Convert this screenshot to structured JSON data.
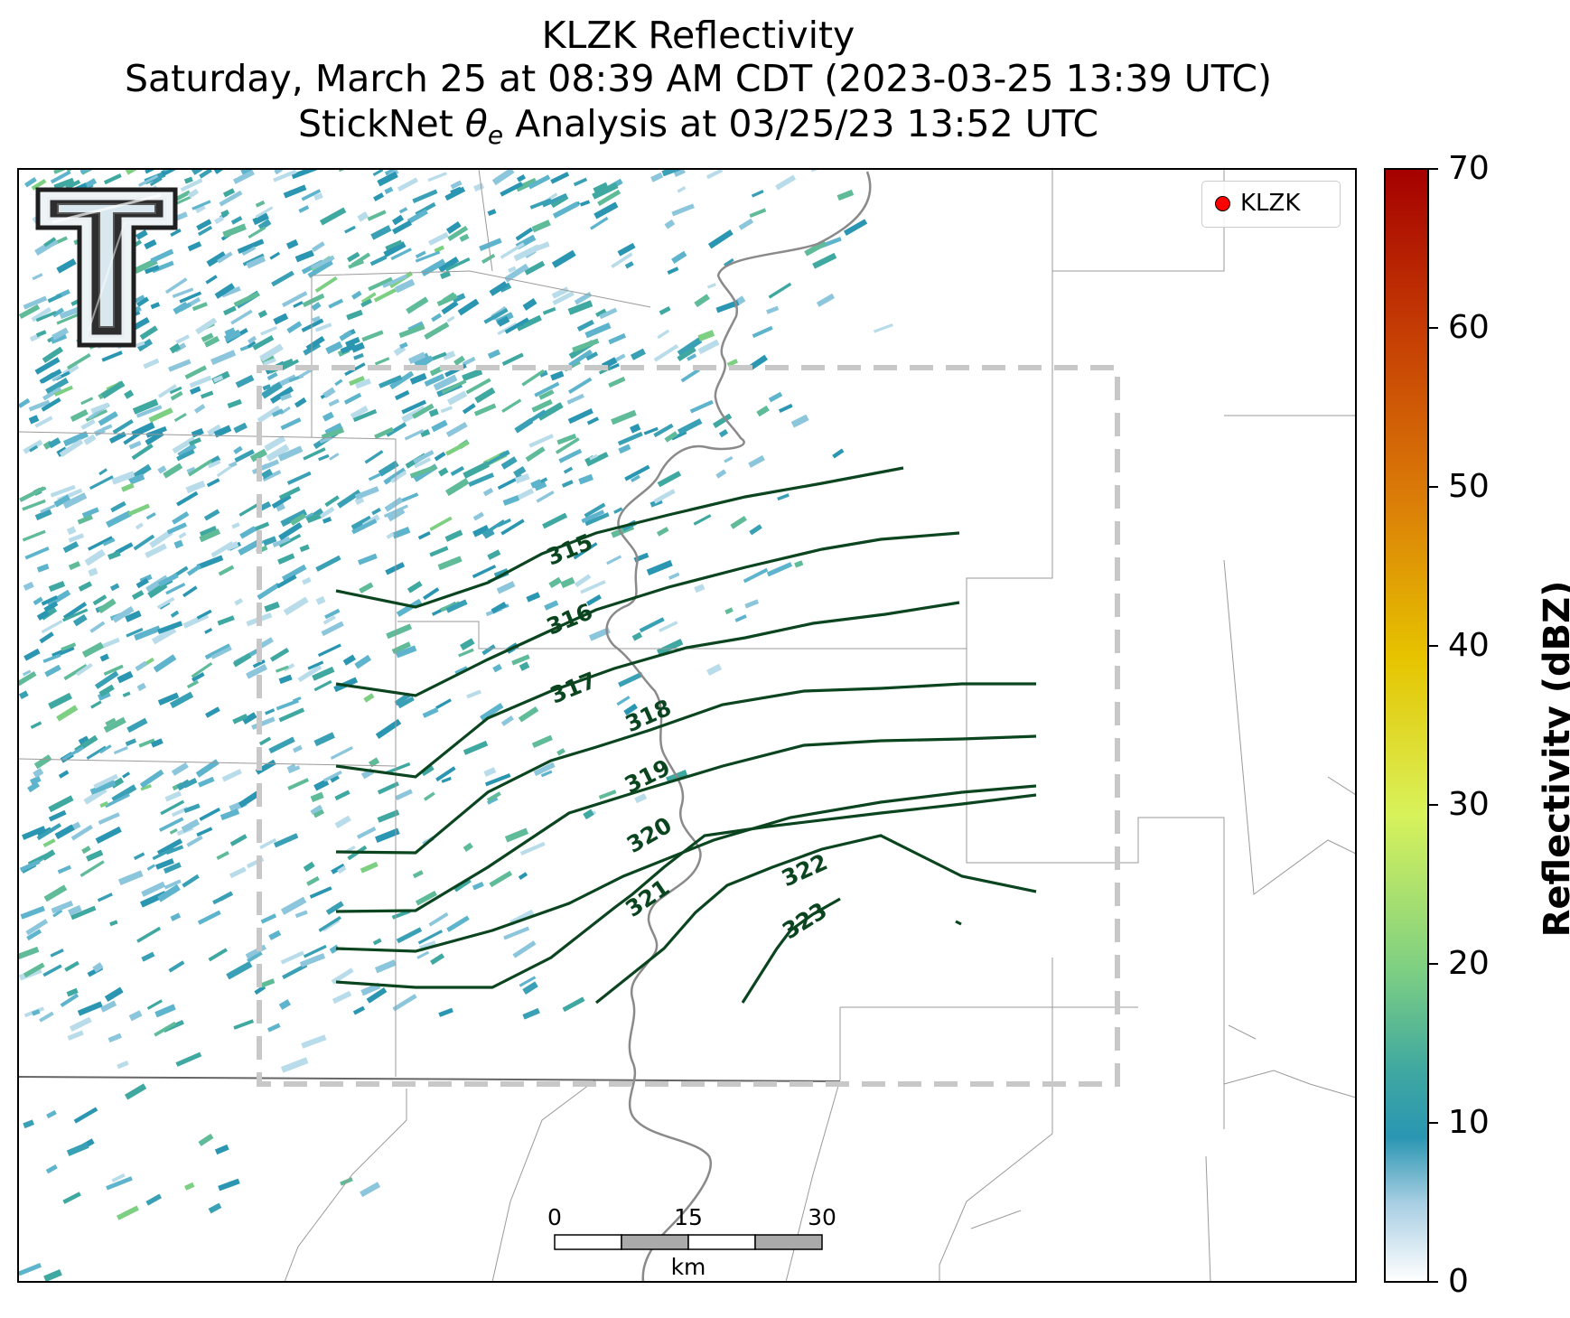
{
  "title": {
    "line1": "KLZK Reflectivity",
    "line2": "Saturday, March 25 at 08:39 AM CDT (2023-03-25 13:39 UTC)",
    "line3_prefix": "StickNet ",
    "line3_symbol": "θ",
    "line3_subscript": "e",
    "line3_suffix": " Analysis at 03/25/23 13:52 UTC"
  },
  "legend": {
    "label": "KLZK",
    "marker_color": "#ff0000"
  },
  "colorbar": {
    "label": "Reflectivity (dBZ)",
    "min": 0,
    "max": 70,
    "ticks": [
      "0",
      "10",
      "20",
      "30",
      "40",
      "50",
      "60",
      "70"
    ],
    "colors": [
      "#ffffff",
      "#a9cfe3",
      "#2a96b2",
      "#3fa8a0",
      "#7dcf82",
      "#d8f25a",
      "#e6c400",
      "#db7e08",
      "#c63e04",
      "#a50000"
    ]
  },
  "scalebar": {
    "ticks": [
      "0",
      "15",
      "30"
    ],
    "unit": "km"
  },
  "contours": {
    "levels": [
      "315",
      "316",
      "317",
      "318",
      "319",
      "320",
      "321",
      "322",
      "323"
    ],
    "color": "#0b4520"
  },
  "logo": {
    "icon": "texas-tech-double-t-logo"
  },
  "colors": {
    "reflectivity_low": "#a9cfe3",
    "reflectivity_mid": "#2a96b2",
    "reflectivity_teal": "#3fa8a0",
    "reflectivity_green": "#7dcf82",
    "county_lines": "#999999",
    "river": "#8a8a8a",
    "domain_box": "#c8c8c8"
  }
}
